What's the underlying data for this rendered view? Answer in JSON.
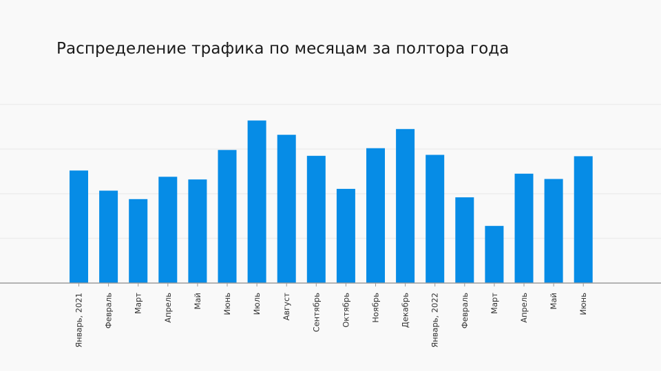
{
  "chart_data": {
    "type": "bar",
    "title": "Распределение трафика по месяцам за полтора года",
    "xlabel": "",
    "ylabel": "",
    "categories": [
      "Январь, 2021",
      "Февраль",
      "Март",
      "Апрель",
      "Май",
      "Июнь",
      "Июль",
      "Август",
      "Сентябрь",
      "Октябрь",
      "Ноябрь",
      "Декабрь",
      "Январь, 2022",
      "Февраль",
      "Март",
      "Апрель",
      "Май",
      "Июнь"
    ],
    "values": [
      2.52,
      2.07,
      1.88,
      2.38,
      2.32,
      2.98,
      3.64,
      3.32,
      2.85,
      2.11,
      3.02,
      3.45,
      2.87,
      1.92,
      1.28,
      2.45,
      2.33,
      2.84
    ],
    "ylim": [
      0,
      4
    ],
    "grid": true,
    "legend": "none",
    "colors": {
      "bar": "#068ce6",
      "grid": "#e6e6e6",
      "axis": "#9a9a9a"
    }
  }
}
